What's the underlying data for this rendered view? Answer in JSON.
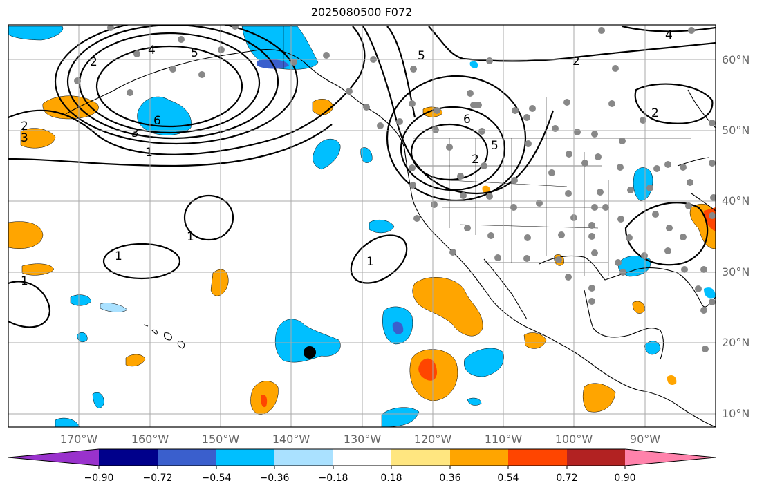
{
  "title": "2025080500 F072",
  "map": {
    "type": "contour-map",
    "extent": {
      "lon_min": -180,
      "lon_max": -80,
      "lat_min": 8,
      "lat_max": 65
    },
    "grid": true,
    "lat_labels": [
      "60°N",
      "50°N",
      "40°N",
      "30°N",
      "20°N",
      "10°N"
    ],
    "lon_labels": [
      "170°W",
      "160°W",
      "150°W",
      "140°W",
      "130°W",
      "120°W",
      "110°W",
      "100°W",
      "90°W"
    ],
    "contour_labels": [
      "4",
      "5",
      "2",
      "6",
      "3",
      "1",
      "2",
      "5",
      "6",
      "5",
      "4",
      "2",
      "2",
      "3",
      "1",
      "1",
      "1",
      "1",
      "2"
    ],
    "marker": {
      "lon": -137.6,
      "lat": 18.7,
      "label": "black-dot"
    }
  },
  "colorbar": {
    "ticks": [
      "−0.90",
      "−0.72",
      "−0.54",
      "−0.36",
      "−0.18",
      "0.18",
      "0.36",
      "0.54",
      "0.72",
      "0.90"
    ],
    "colors": [
      "#9932cc",
      "#00008b",
      "#3a5fcd",
      "#00bfff",
      "#aae1ff",
      "#ffffff",
      "#ffe680",
      "#ffa500",
      "#ff4500",
      "#b22222",
      "#ff82ab"
    ]
  }
}
